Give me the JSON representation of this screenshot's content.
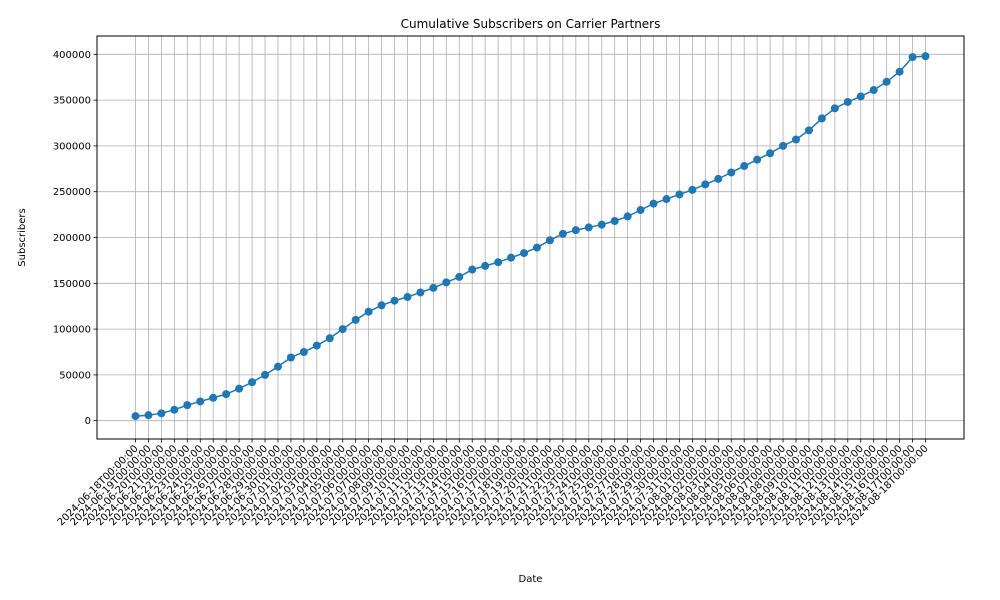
{
  "chart_data": {
    "type": "line",
    "title": "Cumulative Subscribers on Carrier Partners",
    "xlabel": "Date",
    "ylabel": "Subscribers",
    "grid": true,
    "color": "#1f77b4",
    "marker": "circle",
    "ylim": [
      -20000,
      420000
    ],
    "yticks": [
      0,
      50000,
      100000,
      150000,
      200000,
      250000,
      300000,
      350000,
      400000
    ],
    "x": [
      "2024-06-18T00:00:00",
      "2024-06-19T00:00:00",
      "2024-06-20T00:00:00",
      "2024-06-21T00:00:00",
      "2024-06-22T00:00:00",
      "2024-06-23T00:00:00",
      "2024-06-24T00:00:00",
      "2024-06-25T00:00:00",
      "2024-06-26T00:00:00",
      "2024-06-27T00:00:00",
      "2024-06-28T00:00:00",
      "2024-06-29T00:00:00",
      "2024-06-30T00:00:00",
      "2024-07-01T00:00:00",
      "2024-07-02T00:00:00",
      "2024-07-03T00:00:00",
      "2024-07-04T00:00:00",
      "2024-07-05T00:00:00",
      "2024-07-06T00:00:00",
      "2024-07-07T00:00:00",
      "2024-07-08T00:00:00",
      "2024-07-09T00:00:00",
      "2024-07-10T00:00:00",
      "2024-07-11T00:00:00",
      "2024-07-12T00:00:00",
      "2024-07-13T00:00:00",
      "2024-07-14T00:00:00",
      "2024-07-15T00:00:00",
      "2024-07-16T00:00:00",
      "2024-07-17T00:00:00",
      "2024-07-18T00:00:00",
      "2024-07-19T00:00:00",
      "2024-07-20T00:00:00",
      "2024-07-21T00:00:00",
      "2024-07-22T00:00:00",
      "2024-07-23T00:00:00",
      "2024-07-24T00:00:00",
      "2024-07-25T00:00:00",
      "2024-07-26T00:00:00",
      "2024-07-27T00:00:00",
      "2024-07-28T00:00:00",
      "2024-07-29T00:00:00",
      "2024-07-30T00:00:00",
      "2024-07-31T00:00:00",
      "2024-08-01T00:00:00",
      "2024-08-02T00:00:00",
      "2024-08-03T00:00:00",
      "2024-08-04T00:00:00",
      "2024-08-05T00:00:00",
      "2024-08-06T00:00:00",
      "2024-08-07T00:00:00",
      "2024-08-08T00:00:00",
      "2024-08-09T00:00:00",
      "2024-08-10T00:00:00",
      "2024-08-11T00:00:00",
      "2024-08-12T00:00:00",
      "2024-08-13T00:00:00",
      "2024-08-14T00:00:00",
      "2024-08-15T00:00:00",
      "2024-08-16T00:00:00",
      "2024-08-17T00:00:00",
      "2024-08-18T00:00:00"
    ],
    "values": [
      5000,
      6000,
      8000,
      12000,
      17000,
      21000,
      25000,
      29000,
      35000,
      42000,
      50000,
      59000,
      69000,
      75000,
      82000,
      90000,
      100000,
      110000,
      119000,
      126000,
      131000,
      135000,
      140000,
      145000,
      151000,
      157000,
      165000,
      169000,
      173000,
      178000,
      183000,
      189000,
      197000,
      204000,
      208000,
      211000,
      214000,
      218000,
      223000,
      230000,
      237000,
      242000,
      247000,
      252000,
      258000,
      264000,
      271000,
      278000,
      285000,
      292000,
      300000,
      307000,
      317000,
      330000,
      341000,
      348000,
      354000,
      361000,
      370000,
      381000,
      397000,
      398000
    ]
  }
}
